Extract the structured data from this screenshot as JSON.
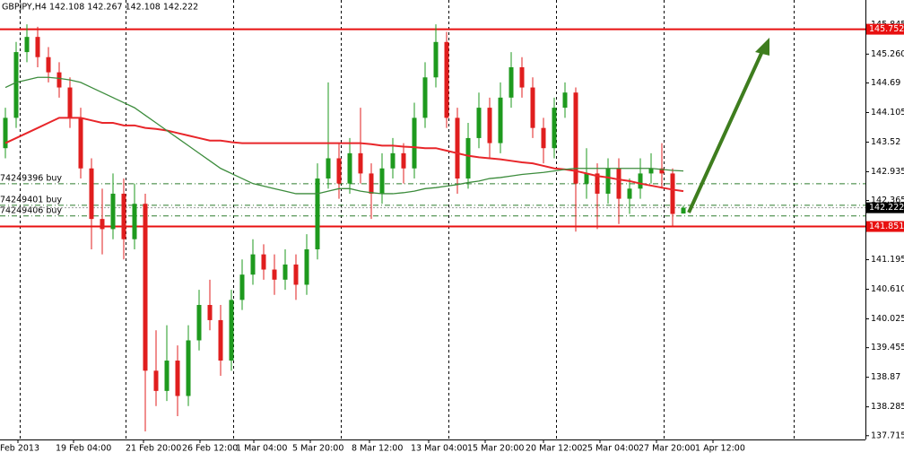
{
  "chart_data": {
    "type": "candlestick",
    "title": "GBPJPY,H4  142.108 142.267 142.108 142.222",
    "ylim": [
      137.64,
      146.33
    ],
    "yticks": [
      145.845,
      {
        "value": 145.26,
        "label": "145.260"
      },
      144.69,
      144.105,
      143.52,
      142.935,
      142.365,
      141.195,
      {
        "value": 140.61,
        "label": "140.610"
      },
      140.025,
      139.455,
      138.87,
      138.285,
      137.715
    ],
    "x_labels": [
      "Feb 2013",
      "19 Feb 04:00",
      "21 Feb 20:00",
      "26 Feb 12:00",
      "1 Mar 04:00",
      "5 Mar 20:00",
      "8 Mar 12:00",
      "13 Mar 04:00",
      "15 Mar 20:00",
      "20 Mar 12:00",
      "25 Mar 04:00",
      "27 Mar 20:00",
      "1 Apr 12:00"
    ],
    "candles": [
      [
        143.4,
        144.2,
        143.2,
        144.0
      ],
      [
        144.0,
        145.5,
        143.8,
        145.3
      ],
      [
        145.3,
        145.85,
        145.1,
        145.6
      ],
      [
        145.6,
        145.8,
        145.0,
        145.2
      ],
      [
        145.2,
        145.4,
        144.7,
        144.9
      ],
      [
        144.9,
        145.1,
        144.4,
        144.6
      ],
      [
        144.6,
        144.8,
        143.8,
        144.0
      ],
      [
        144.0,
        144.2,
        142.8,
        143.0
      ],
      [
        143.0,
        143.2,
        141.4,
        142.0
      ],
      [
        142.0,
        142.6,
        141.3,
        141.8
      ],
      [
        141.8,
        142.9,
        141.6,
        142.5
      ],
      [
        142.5,
        142.8,
        141.2,
        141.6
      ],
      [
        141.6,
        142.7,
        141.4,
        142.3
      ],
      [
        142.3,
        142.5,
        137.8,
        139.0
      ],
      [
        139.0,
        139.8,
        138.3,
        138.6
      ],
      [
        138.6,
        139.9,
        138.4,
        139.2
      ],
      [
        139.2,
        139.5,
        138.1,
        138.5
      ],
      [
        138.5,
        139.9,
        138.3,
        139.6
      ],
      [
        139.6,
        140.6,
        139.4,
        140.3
      ],
      [
        140.3,
        140.8,
        139.8,
        140.0
      ],
      [
        140.0,
        140.3,
        138.9,
        139.2
      ],
      [
        139.2,
        140.6,
        139.0,
        140.4
      ],
      [
        140.4,
        141.2,
        140.2,
        140.9
      ],
      [
        140.9,
        141.6,
        140.7,
        141.3
      ],
      [
        141.3,
        141.5,
        140.8,
        141.0
      ],
      [
        141.0,
        141.3,
        140.5,
        140.8
      ],
      [
        140.8,
        141.4,
        140.6,
        141.1
      ],
      [
        141.1,
        141.3,
        140.4,
        140.7
      ],
      [
        140.7,
        141.7,
        140.5,
        141.4
      ],
      [
        141.4,
        143.1,
        141.2,
        142.8
      ],
      [
        142.8,
        144.7,
        142.6,
        143.2
      ],
      [
        143.2,
        143.5,
        142.4,
        142.7
      ],
      [
        142.7,
        143.6,
        142.5,
        143.3
      ],
      [
        143.3,
        144.2,
        142.7,
        142.9
      ],
      [
        142.9,
        143.1,
        142.0,
        142.5
      ],
      [
        142.5,
        143.3,
        142.3,
        143.0
      ],
      [
        143.0,
        143.6,
        142.8,
        143.3
      ],
      [
        143.3,
        143.5,
        142.7,
        143.0
      ],
      [
        143.0,
        144.3,
        142.8,
        144.0
      ],
      [
        144.0,
        145.1,
        143.8,
        144.8
      ],
      [
        144.8,
        145.85,
        144.6,
        145.5
      ],
      [
        145.5,
        145.7,
        143.8,
        144.0
      ],
      [
        144.0,
        144.2,
        142.5,
        142.8
      ],
      [
        142.8,
        143.9,
        142.6,
        143.6
      ],
      [
        143.6,
        144.5,
        143.4,
        144.2
      ],
      [
        144.2,
        144.4,
        143.2,
        143.5
      ],
      [
        143.5,
        144.7,
        143.3,
        144.4
      ],
      [
        144.4,
        145.3,
        144.2,
        145.0
      ],
      [
        145.0,
        145.2,
        144.4,
        144.6
      ],
      [
        144.6,
        144.8,
        143.6,
        143.8
      ],
      [
        143.8,
        144.0,
        143.1,
        143.4
      ],
      [
        143.4,
        144.4,
        143.2,
        144.2
      ],
      [
        144.2,
        144.7,
        144.0,
        144.5
      ],
      [
        144.5,
        144.6,
        141.75,
        142.7
      ],
      [
        142.7,
        143.4,
        142.4,
        142.9
      ],
      [
        142.9,
        143.1,
        141.8,
        142.5
      ],
      [
        142.5,
        143.2,
        142.3,
        143.0
      ],
      [
        143.0,
        143.2,
        141.9,
        142.4
      ],
      [
        142.4,
        142.8,
        142.1,
        142.6
      ],
      [
        142.6,
        143.2,
        142.4,
        142.9
      ],
      [
        142.9,
        143.3,
        142.7,
        143.0
      ],
      [
        143.0,
        143.5,
        142.6,
        142.9
      ],
      [
        142.9,
        143.0,
        141.85,
        142.1
      ],
      [
        142.108,
        142.267,
        142.108,
        142.222
      ]
    ],
    "series": [
      {
        "color": "#e8262a",
        "values": [
          143.5,
          143.6,
          143.7,
          143.8,
          143.9,
          144.0,
          144.0,
          144.0,
          143.95,
          143.9,
          143.9,
          143.85,
          143.85,
          143.8,
          143.78,
          143.75,
          143.7,
          143.65,
          143.6,
          143.55,
          143.55,
          143.52,
          143.5,
          143.5,
          143.5,
          143.5,
          143.5,
          143.5,
          143.5,
          143.5,
          143.5,
          143.5,
          143.5,
          143.5,
          143.48,
          143.45,
          143.45,
          143.43,
          143.42,
          143.4,
          143.4,
          143.35,
          143.3,
          143.25,
          143.22,
          143.2,
          143.18,
          143.15,
          143.12,
          143.1,
          143.05,
          143.0,
          142.98,
          142.95,
          142.9,
          142.85,
          142.82,
          142.78,
          142.75,
          142.7,
          142.66,
          142.62,
          142.58,
          142.55
        ]
      },
      {
        "color": "#3c8c3c",
        "values": [
          144.6,
          144.7,
          144.75,
          144.8,
          144.8,
          144.78,
          144.75,
          144.7,
          144.6,
          144.5,
          144.4,
          144.3,
          144.2,
          144.05,
          143.9,
          143.75,
          143.6,
          143.45,
          143.3,
          143.15,
          143.0,
          142.9,
          142.8,
          142.7,
          142.65,
          142.6,
          142.55,
          142.5,
          142.5,
          142.5,
          142.55,
          142.6,
          142.6,
          142.55,
          142.52,
          142.5,
          142.5,
          142.52,
          142.55,
          142.6,
          142.62,
          142.65,
          142.68,
          142.72,
          142.75,
          142.8,
          142.82,
          142.85,
          142.88,
          142.9,
          142.92,
          142.95,
          142.98,
          143.0,
          143.0,
          143.0,
          143.0,
          143.0,
          143.0,
          143.0,
          143.0,
          142.98,
          142.96,
          142.95
        ]
      }
    ],
    "levels": [
      145.752,
      141.851
    ],
    "current_price": 142.222,
    "orders": [
      {
        "label": "74249396 buy",
        "value": 142.697
      },
      {
        "label": "74249401 buy",
        "value": 142.27
      },
      {
        "label": "74249406 buy",
        "value": 142.06
      }
    ],
    "bull_color": "#1e9a1e",
    "bear_color": "#e01e1e",
    "level_color": "#e81010"
  }
}
